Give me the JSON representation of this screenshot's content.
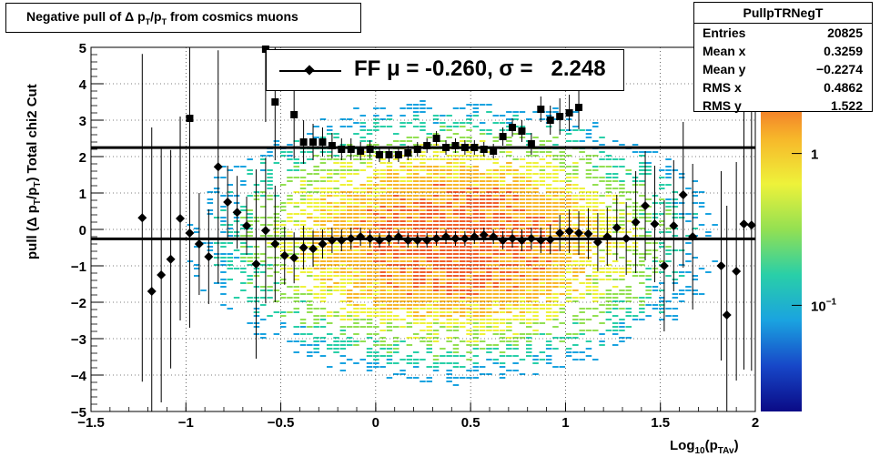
{
  "title": "Negative pull of Δ p_T/p_T from cosmics muons",
  "stats": {
    "name": "PullpTRNegT",
    "rows": [
      {
        "key": "Entries",
        "value": "20825"
      },
      {
        "key": "Mean x",
        "value": "0.3259"
      },
      {
        "key": "Mean y",
        "value": "−0.2274"
      },
      {
        "key": "RMS x",
        "value": "0.4862"
      },
      {
        "key": "RMS y",
        "value": "1.522"
      }
    ]
  },
  "legend": {
    "text": "FF μ = -0.260, σ =   2.248"
  },
  "colors": {
    "markers": "#000000",
    "fit_lines": "#000000",
    "palette": [
      "#0a0a86",
      "#1747c8",
      "#1aa3e0",
      "#29cfa8",
      "#93e052",
      "#eef23a",
      "#f7b72a",
      "#f0602a",
      "#c81d1f"
    ]
  },
  "chart_data": {
    "type": "heatmap",
    "xlabel": "Log_10(p_TAv)",
    "ylabel": "pull (Δ p_T/p_T)  Total chi2 Cut",
    "xlim": [
      -1.5,
      2
    ],
    "ylim": [
      -5,
      5
    ],
    "x_ticks": [
      -1.5,
      -1,
      -0.5,
      0,
      0.5,
      1,
      1.5,
      2
    ],
    "x_tick_labels": [
      "−1.5",
      "−1",
      "−0.5",
      "0",
      "0.5",
      "1",
      "1.5",
      "2"
    ],
    "y_ticks": [
      -5,
      -4,
      -3,
      -2,
      -1,
      0,
      1,
      2,
      3,
      4,
      5
    ],
    "y_tick_labels": [
      "−5",
      "−4",
      "−3",
      "−2",
      "−1",
      "0",
      "1",
      "2",
      "3",
      "4",
      "5"
    ],
    "grid": true,
    "z_scale": "log",
    "z_ticks": [
      0.1,
      1
    ],
    "z_tick_labels": [
      "10^−1",
      "1"
    ],
    "z_range": [
      0.02,
      5
    ],
    "density": {
      "x_center": 0.4,
      "y_center": -0.3,
      "x_sigma": 0.5,
      "y_sigma": 1.4,
      "peak": 2.5
    },
    "fit_lines": [
      {
        "name": "mean",
        "y": -0.26
      },
      {
        "name": "sigma",
        "y": 2.248
      }
    ],
    "series": [
      {
        "name": "mean profile",
        "marker": "diamond",
        "points": [
          [
            -1.23,
            0.32,
            4.5
          ],
          [
            -1.18,
            -1.7,
            4.5
          ],
          [
            -1.13,
            -1.25,
            3.5
          ],
          [
            -1.08,
            -0.82,
            3.0
          ],
          [
            -1.03,
            0.3,
            2.8
          ],
          [
            -0.98,
            -0.1,
            2.6
          ],
          [
            -0.93,
            -0.4,
            1.4
          ],
          [
            -0.88,
            -0.75,
            1.3
          ],
          [
            -0.83,
            1.72,
            3.2
          ],
          [
            -0.78,
            0.75,
            1.0
          ],
          [
            -0.73,
            0.47,
            1.0
          ],
          [
            -0.68,
            0.1,
            0.8
          ],
          [
            -0.63,
            -0.95,
            2.6
          ],
          [
            -0.58,
            -0.03,
            2.0
          ],
          [
            -0.53,
            -0.4,
            1.6
          ],
          [
            -0.48,
            -0.72,
            0.8
          ],
          [
            -0.43,
            -0.78,
            0.7
          ],
          [
            -0.38,
            -0.5,
            0.6
          ],
          [
            -0.33,
            -0.53,
            0.5
          ],
          [
            -0.28,
            -0.4,
            0.4
          ],
          [
            -0.23,
            -0.3,
            0.35
          ],
          [
            -0.18,
            -0.3,
            0.3
          ],
          [
            -0.13,
            -0.25,
            0.3
          ],
          [
            -0.08,
            -0.2,
            0.25
          ],
          [
            -0.03,
            -0.25,
            0.25
          ],
          [
            0.02,
            -0.3,
            0.2
          ],
          [
            0.07,
            -0.25,
            0.2
          ],
          [
            0.12,
            -0.2,
            0.2
          ],
          [
            0.17,
            -0.3,
            0.2
          ],
          [
            0.22,
            -0.3,
            0.2
          ],
          [
            0.27,
            -0.3,
            0.2
          ],
          [
            0.32,
            -0.25,
            0.2
          ],
          [
            0.37,
            -0.2,
            0.2
          ],
          [
            0.42,
            -0.25,
            0.2
          ],
          [
            0.47,
            -0.25,
            0.2
          ],
          [
            0.52,
            -0.2,
            0.2
          ],
          [
            0.57,
            -0.15,
            0.2
          ],
          [
            0.62,
            -0.2,
            0.2
          ],
          [
            0.67,
            -0.3,
            0.25
          ],
          [
            0.72,
            -0.25,
            0.25
          ],
          [
            0.77,
            -0.3,
            0.3
          ],
          [
            0.82,
            -0.25,
            0.3
          ],
          [
            0.87,
            -0.3,
            0.35
          ],
          [
            0.92,
            -0.28,
            0.4
          ],
          [
            0.97,
            -0.1,
            0.5
          ],
          [
            1.02,
            -0.05,
            0.6
          ],
          [
            1.07,
            -0.1,
            0.6
          ],
          [
            1.12,
            -0.12,
            0.7
          ],
          [
            1.17,
            -0.35,
            0.8
          ],
          [
            1.22,
            -0.2,
            0.8
          ],
          [
            1.27,
            0.05,
            0.9
          ],
          [
            1.32,
            -0.25,
            1.0
          ],
          [
            1.37,
            0.2,
            1.4
          ],
          [
            1.42,
            0.65,
            1.5
          ],
          [
            1.47,
            0.15,
            1.6
          ],
          [
            1.52,
            -1.0,
            1.8
          ],
          [
            1.57,
            0.1,
            1.8
          ],
          [
            1.62,
            0.95,
            2.0
          ],
          [
            1.67,
            -0.2,
            2.0
          ],
          [
            1.82,
            -1.0,
            2.6
          ],
          [
            1.85,
            -2.35,
            3.0
          ],
          [
            1.9,
            -1.15,
            3.0
          ],
          [
            1.94,
            0.15,
            4.0
          ],
          [
            1.98,
            0.12,
            4.0
          ]
        ]
      },
      {
        "name": "sigma profile",
        "marker": "square",
        "points": [
          [
            -0.98,
            3.05,
            2.5
          ],
          [
            -0.58,
            4.95,
            2.0
          ],
          [
            -0.53,
            3.5,
            1.6
          ],
          [
            -0.43,
            3.15,
            1.2
          ],
          [
            -0.38,
            2.4,
            0.6
          ],
          [
            -0.33,
            2.4,
            0.5
          ],
          [
            -0.28,
            2.4,
            0.4
          ],
          [
            -0.23,
            2.3,
            0.35
          ],
          [
            -0.18,
            2.2,
            0.3
          ],
          [
            -0.13,
            2.2,
            0.3
          ],
          [
            -0.08,
            2.15,
            0.25
          ],
          [
            -0.03,
            2.2,
            0.25
          ],
          [
            0.02,
            2.05,
            0.2
          ],
          [
            0.07,
            2.05,
            0.2
          ],
          [
            0.12,
            2.05,
            0.2
          ],
          [
            0.17,
            2.1,
            0.2
          ],
          [
            0.22,
            2.2,
            0.2
          ],
          [
            0.27,
            2.3,
            0.2
          ],
          [
            0.32,
            2.5,
            0.2
          ],
          [
            0.37,
            2.25,
            0.2
          ],
          [
            0.42,
            2.3,
            0.2
          ],
          [
            0.47,
            2.25,
            0.2
          ],
          [
            0.52,
            2.25,
            0.2
          ],
          [
            0.57,
            2.2,
            0.2
          ],
          [
            0.62,
            2.15,
            0.2
          ],
          [
            0.67,
            2.55,
            0.25
          ],
          [
            0.72,
            2.8,
            0.25
          ],
          [
            0.77,
            2.7,
            0.3
          ],
          [
            0.82,
            2.35,
            0.3
          ],
          [
            0.87,
            3.3,
            0.35
          ],
          [
            0.92,
            3.0,
            0.4
          ],
          [
            0.97,
            3.1,
            0.5
          ],
          [
            1.02,
            3.2,
            0.5
          ],
          [
            1.07,
            3.35,
            0.6
          ]
        ]
      }
    ]
  }
}
